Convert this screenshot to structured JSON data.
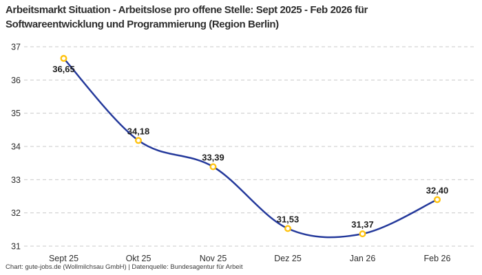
{
  "title": "Arbeitsmarkt Situation - Arbeitslose pro offene Stelle: Sept 2025 - Feb 2026 für\nSoftwareentwicklung und Programmierung (Region Berlin)",
  "footer": "Chart: gute-jobs.de (Wollmilchsau GmbH) | Datenquelle: Bundesagentur für Arbeit",
  "chart_data": {
    "type": "line",
    "title": "Arbeitsmarkt Situation - Arbeitslose pro offene Stelle: Sept 2025 - Feb 2026 für Softwareentwicklung und Programmierung (Region Berlin)",
    "categories": [
      "Sept 25",
      "Okt 25",
      "Nov 25",
      "Dez 25",
      "Jan 26",
      "Feb 26"
    ],
    "values": [
      36.65,
      34.18,
      33.39,
      31.53,
      31.37,
      32.4
    ],
    "point_labels": [
      "36,65",
      "34,18",
      "33,39",
      "31,53",
      "31,37",
      "32,40"
    ],
    "ylim": [
      31,
      37
    ],
    "yticks": [
      37,
      36,
      35,
      34,
      33,
      32,
      31
    ],
    "grid": "horizontal-dashed",
    "legend": "none",
    "smooth": true,
    "colors": {
      "line": "#24399B",
      "marker_ring": "#FFC20E",
      "marker_fill": "#FFFFFF",
      "grid": "#C9C9C9",
      "axis_text": "#2E2E2E",
      "point_label_text": "#1F1F1F"
    }
  }
}
